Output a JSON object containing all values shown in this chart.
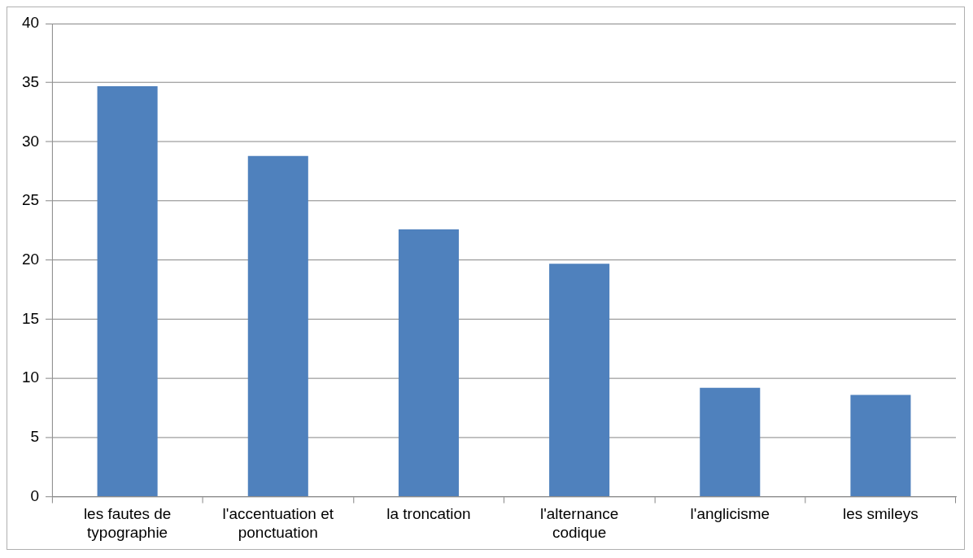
{
  "chart_data": {
    "type": "bar",
    "categories": [
      "les fautes de typographie",
      "l'accentuation et ponctuation",
      "la troncation",
      "l'alternance codique",
      "l'anglicisme",
      "les smileys"
    ],
    "values": [
      34.7,
      28.8,
      22.6,
      19.7,
      9.2,
      8.6
    ],
    "color": "#4f81bd",
    "ylim": [
      0,
      40
    ],
    "yticks": [
      0,
      5,
      10,
      15,
      20,
      25,
      30,
      35,
      40
    ],
    "grid": "y",
    "legend": false
  }
}
